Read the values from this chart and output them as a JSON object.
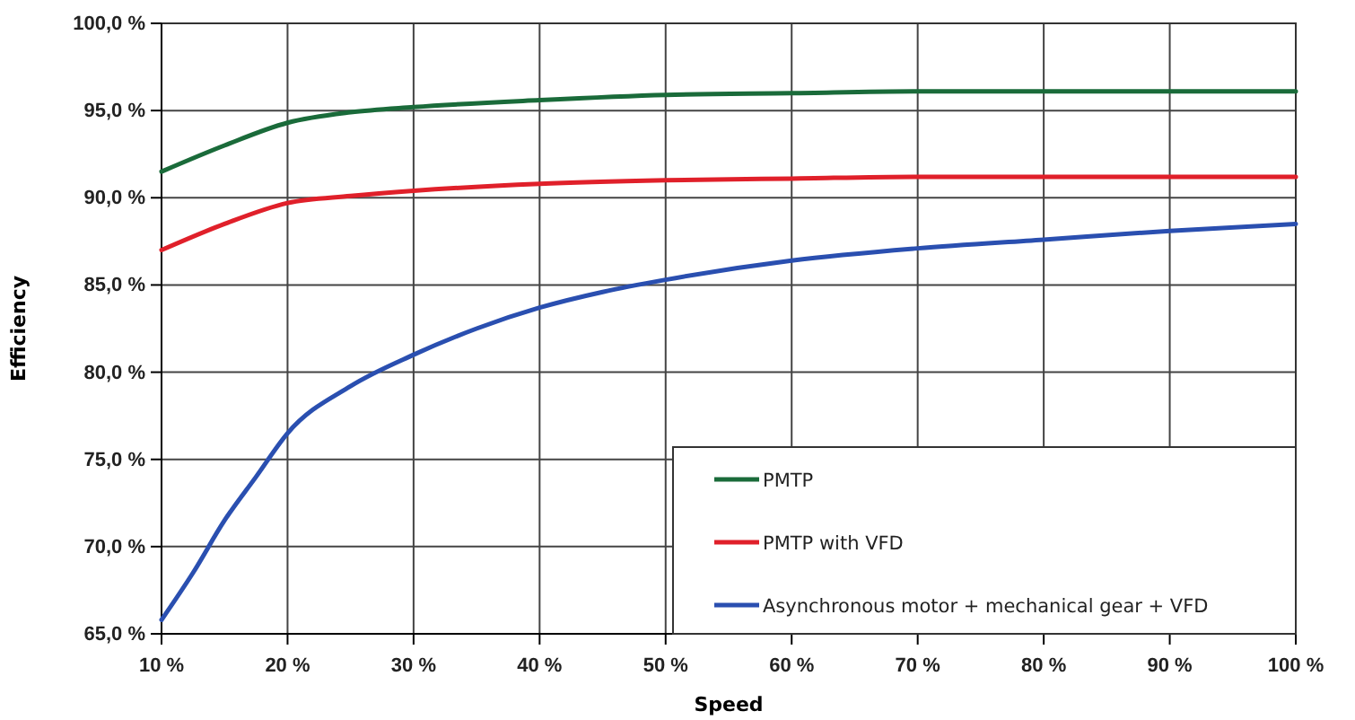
{
  "chart_data": {
    "type": "line",
    "xlabel": "Speed",
    "ylabel": "Efficiency",
    "xlim": [
      10,
      100
    ],
    "xticks": [
      {
        "value": 10,
        "label": "10 %"
      },
      {
        "value": 20,
        "label": "20 %"
      },
      {
        "value": 30,
        "label": "30 %"
      },
      {
        "value": 40,
        "label": "40 %"
      },
      {
        "value": 50,
        "label": "50 %"
      },
      {
        "value": 60,
        "label": "60 %"
      },
      {
        "value": 70,
        "label": "70 %"
      },
      {
        "value": 80,
        "label": "80 %"
      },
      {
        "value": 90,
        "label": "90 %"
      },
      {
        "value": 100,
        "label": "100 %"
      }
    ],
    "ylim": [
      65,
      100
    ],
    "yticks": [
      {
        "value": 65,
        "label": "65,0 %"
      },
      {
        "value": 70,
        "label": "70,0 %"
      },
      {
        "value": 75,
        "label": "75,0 %"
      },
      {
        "value": 80,
        "label": "80,0 %"
      },
      {
        "value": 85,
        "label": "85,0 %"
      },
      {
        "value": 90,
        "label": "90,0 %"
      },
      {
        "value": 95,
        "label": "95,0 %"
      },
      {
        "value": 100,
        "label": "100,0 %"
      }
    ],
    "grid": true,
    "legend": "bottom right",
    "marker": "none",
    "line_style": "solid",
    "series": [
      {
        "name": "PMTP",
        "color": "#1a6b3a",
        "x": [
          10,
          15,
          20,
          25,
          30,
          40,
          50,
          60,
          70,
          80,
          90,
          100
        ],
        "values": [
          91.5,
          93,
          94.3,
          94.9,
          95.2,
          95.6,
          95.9,
          96,
          96.1,
          96.1,
          96.1,
          96.1
        ]
      },
      {
        "name": "PMTP with VFD",
        "color": "#e0202a",
        "x": [
          10,
          15,
          20,
          25,
          30,
          40,
          50,
          60,
          70,
          80,
          90,
          100
        ],
        "values": [
          87,
          88.5,
          89.7,
          90.1,
          90.4,
          90.8,
          91,
          91.1,
          91.2,
          91.2,
          91.2,
          91.2
        ]
      },
      {
        "name": "Asynchronous motor + mechanical gear + VFD",
        "color": "#2a4fb0",
        "x": [
          10,
          12.5,
          15,
          17.5,
          20,
          25,
          30,
          35,
          40,
          45,
          50,
          60,
          70,
          80,
          90,
          100
        ],
        "values": [
          65.8,
          68.5,
          71.5,
          74,
          76.5,
          79.2,
          81,
          82.5,
          83.7,
          84.6,
          85.3,
          86.4,
          87.1,
          87.6,
          88.1,
          88.5
        ]
      }
    ]
  }
}
